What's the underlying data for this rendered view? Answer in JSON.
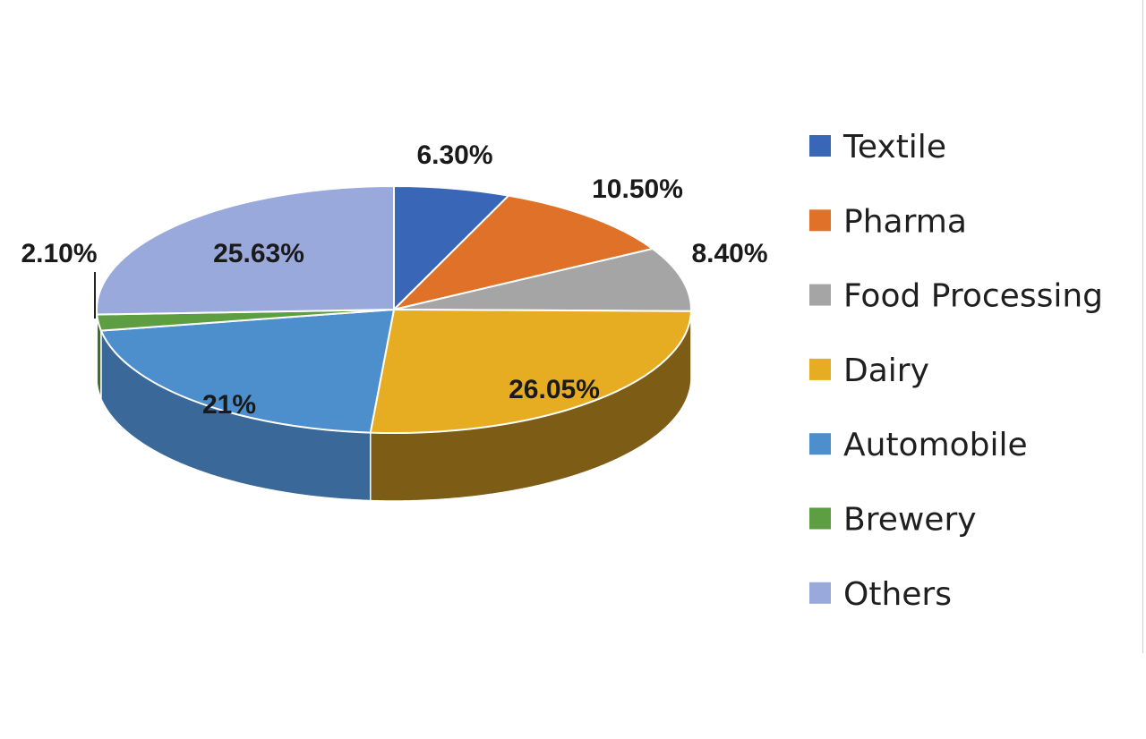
{
  "chart_data": {
    "type": "pie",
    "style": "3d",
    "legend_position": "right",
    "start_angle_deg": 90,
    "direction": "clockwise",
    "slices": [
      {
        "name": "Textile",
        "value": 6.3,
        "label": "6.30%",
        "color": "#3a66b7",
        "side_color": "#26477f"
      },
      {
        "name": "Pharma",
        "value": 10.5,
        "label": "10.50%",
        "color": "#e07128",
        "side_color": "#9c4e1a"
      },
      {
        "name": "Food Processing",
        "value": 8.4,
        "label": "8.40%",
        "color": "#a5a5a5",
        "side_color": "#6f6f6f"
      },
      {
        "name": "Dairy",
        "value": 26.05,
        "label": "26.05%",
        "color": "#e7ad22",
        "side_color": "#7d5d16"
      },
      {
        "name": "Automobile",
        "value": 21,
        "label": "21%",
        "color": "#4c8fcc",
        "side_color": "#3a6898"
      },
      {
        "name": "Brewery",
        "value": 2.1,
        "label": "2.10%",
        "color": "#5e9e43",
        "side_color": "#3f6e2c"
      },
      {
        "name": "Others",
        "value": 25.63,
        "label": "25.63%",
        "color": "#9aa9dc",
        "side_color": "#6a78a8"
      }
    ]
  }
}
